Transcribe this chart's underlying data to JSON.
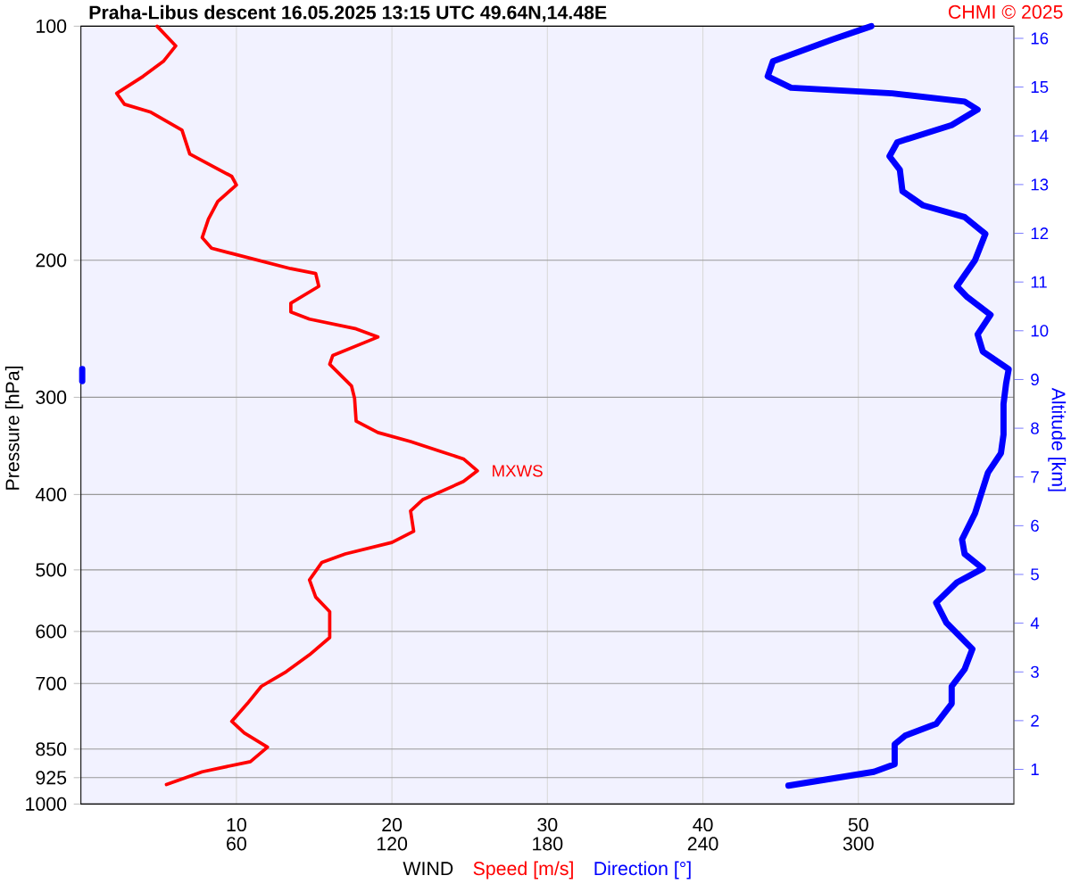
{
  "chart_data": {
    "type": "line",
    "title": "Praha-Libus   descent   16.05.2025 13:15 UTC   49.64N,14.48E",
    "xlabel": "WIND",
    "ylabel": "Pressure [hPa]",
    "y2label": "Altitude [km]",
    "annotations": [
      "CHMI © 2025",
      {
        "text": "MXWS",
        "x": 25.5,
        "y": 373
      }
    ],
    "log": "y",
    "grid": true,
    "xlim": [
      0,
      60
    ],
    "ylim": [
      1000,
      100
    ],
    "x2lim": [
      0,
      360
    ],
    "y2lim": [
      0.29,
      16.25
    ],
    "xticks": [
      10,
      20,
      30,
      40,
      50
    ],
    "x2ticks": [
      60,
      120,
      180,
      240,
      300
    ],
    "yticks": [
      100,
      200,
      300,
      400,
      500,
      600,
      700,
      850,
      925,
      1000
    ],
    "y2ticks": [
      1,
      2,
      3,
      4,
      5,
      6,
      7,
      8,
      9,
      10,
      11,
      12,
      13,
      14,
      15,
      16
    ],
    "series": [
      {
        "name": "Speed [m/s]",
        "color": "#ff0000",
        "x": [
          4.9,
          6.1,
          5.3,
          4.0,
          2.3,
          2.8,
          4.5,
          6.5,
          7.0,
          9.7,
          10.0,
          8.8,
          8.2,
          7.8,
          8.4,
          9.7,
          13.5,
          15.1,
          15.3,
          13.5,
          13.5,
          14.7,
          17.7,
          19.1,
          16.2,
          16.0,
          17.4,
          17.6,
          17.7,
          19.1,
          21.2,
          24.6,
          25.5,
          24.6,
          22.0,
          21.2,
          21.4,
          20.0,
          17.0,
          15.5,
          14.7,
          15.1,
          16.0,
          16.0,
          14.7,
          13.2,
          11.6,
          10.7,
          9.7,
          10.5,
          12.0,
          10.9,
          7.8,
          5.5
        ],
        "values": [
          100,
          106,
          111,
          116,
          122,
          126,
          129,
          136,
          146,
          156,
          160,
          168,
          177,
          187,
          193,
          196,
          205,
          208,
          216,
          227,
          233,
          238,
          245,
          251,
          265,
          272,
          290,
          301,
          322,
          333,
          342,
          360,
          373,
          385,
          406,
          420,
          446,
          461,
          477,
          489,
          515,
          542,
          566,
          611,
          643,
          676,
          706,
          743,
          783,
          810,
          845,
          882,
          909,
          944
        ]
      },
      {
        "name": "Direction [°]",
        "color": "#0000ff",
        "axis": "x2",
        "x": [
          305,
          290,
          267,
          265,
          274,
          313,
          341,
          346,
          336,
          315,
          312,
          316,
          317,
          325,
          341,
          349,
          345,
          338,
          342,
          351,
          346,
          348,
          358,
          357,
          356,
          356,
          355,
          350,
          345,
          340,
          341,
          348,
          338,
          330,
          334,
          344,
          341,
          336,
          336,
          330,
          318,
          314,
          314,
          306,
          273
        ],
        "values": [
          100,
          104,
          111,
          116,
          120,
          122,
          125,
          128,
          134,
          141,
          147,
          153,
          163,
          170,
          176,
          185,
          200,
          216,
          223,
          235,
          249,
          262,
          276,
          288,
          306,
          335,
          354,
          375,
          423,
          457,
          477,
          498,
          519,
          551,
          585,
          632,
          671,
          706,
          743,
          789,
          817,
          838,
          889,
          909,
          947
        ]
      },
      {
        "color": "#0000ff",
        "axis": "x2",
        "x": [
          0.5,
          0.5
        ],
        "values": [
          276,
          286
        ]
      }
    ]
  }
}
